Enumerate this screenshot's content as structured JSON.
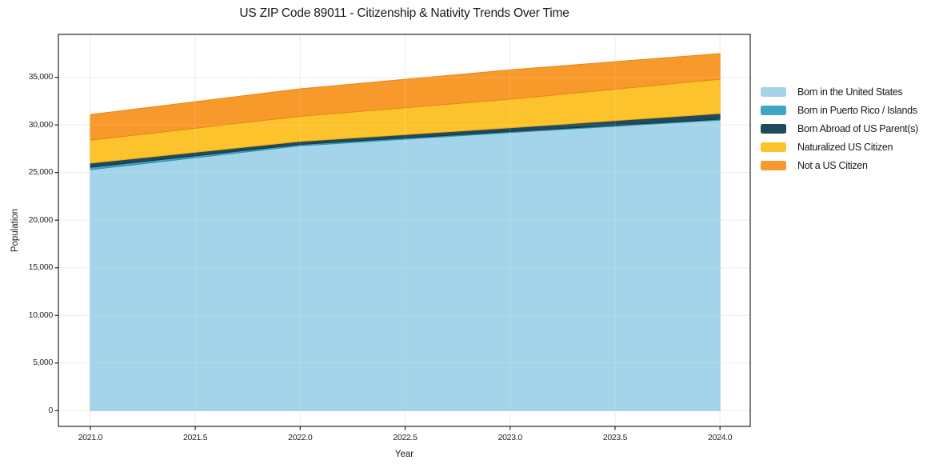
{
  "title": "US ZIP Code 89011 - Citizenship & Nativity Trends Over Time",
  "chart_data": {
    "type": "area",
    "stacked": true,
    "title": "US ZIP Code 89011 - Citizenship & Nativity Trends Over Time",
    "xlabel": "Year",
    "ylabel": "Population",
    "x": [
      2021,
      2022,
      2023,
      2024
    ],
    "series": [
      {
        "name": "Born in the United States",
        "values": [
          25300,
          27800,
          29200,
          30500
        ],
        "color": "#a3d4ea",
        "edge": "#8cc5e0"
      },
      {
        "name": "Born in Puerto Rico / Islands",
        "values": [
          250,
          150,
          100,
          100
        ],
        "color": "#3fa6c5",
        "edge": "#318fac"
      },
      {
        "name": "Born Abroad of US Parent(s)",
        "values": [
          430,
          320,
          400,
          600
        ],
        "color": "#1f4a5c",
        "edge": "#153844"
      },
      {
        "name": "Naturalized US Citizen",
        "values": [
          2420,
          2630,
          3000,
          3600
        ],
        "color": "#fcc32d",
        "edge": "#ecac0e"
      },
      {
        "name": "Not a US Citizen",
        "values": [
          2680,
          2890,
          3080,
          2700
        ],
        "color": "#f8992c",
        "edge": "#e78617"
      }
    ],
    "stack_totals": [
      31080,
      33790,
      35780,
      37500
    ],
    "xlim": [
      2020.848,
      2024.144
    ],
    "ylim": [
      -1655,
      39505
    ],
    "xticks": [
      2021.0,
      2021.5,
      2022.0,
      2022.5,
      2023.0,
      2023.5,
      2024.0
    ],
    "xtick_labels": [
      "2021.0",
      "2021.5",
      "2022.0",
      "2022.5",
      "2023.0",
      "2023.5",
      "2024.0"
    ],
    "yticks": [
      0,
      5000,
      10000,
      15000,
      20000,
      25000,
      30000,
      35000
    ],
    "ytick_labels": [
      "0",
      "5,000",
      "10,000",
      "15,000",
      "20,000",
      "25,000",
      "30,000",
      "35,000"
    ],
    "grid": true,
    "legend_position": "right-outside",
    "colors": {
      "spine": "#262626",
      "grid": "#e8e8e8",
      "grid_overlay": "rgba(255,255,255,0.16)",
      "background": "#ffffff",
      "text": "#1a1a1a"
    }
  },
  "legend": {
    "items": [
      {
        "label": "Born in the United States"
      },
      {
        "label": "Born in Puerto Rico / Islands"
      },
      {
        "label": "Born Abroad of US Parent(s)"
      },
      {
        "label": "Naturalized US Citizen"
      },
      {
        "label": "Not a US Citizen"
      }
    ]
  }
}
